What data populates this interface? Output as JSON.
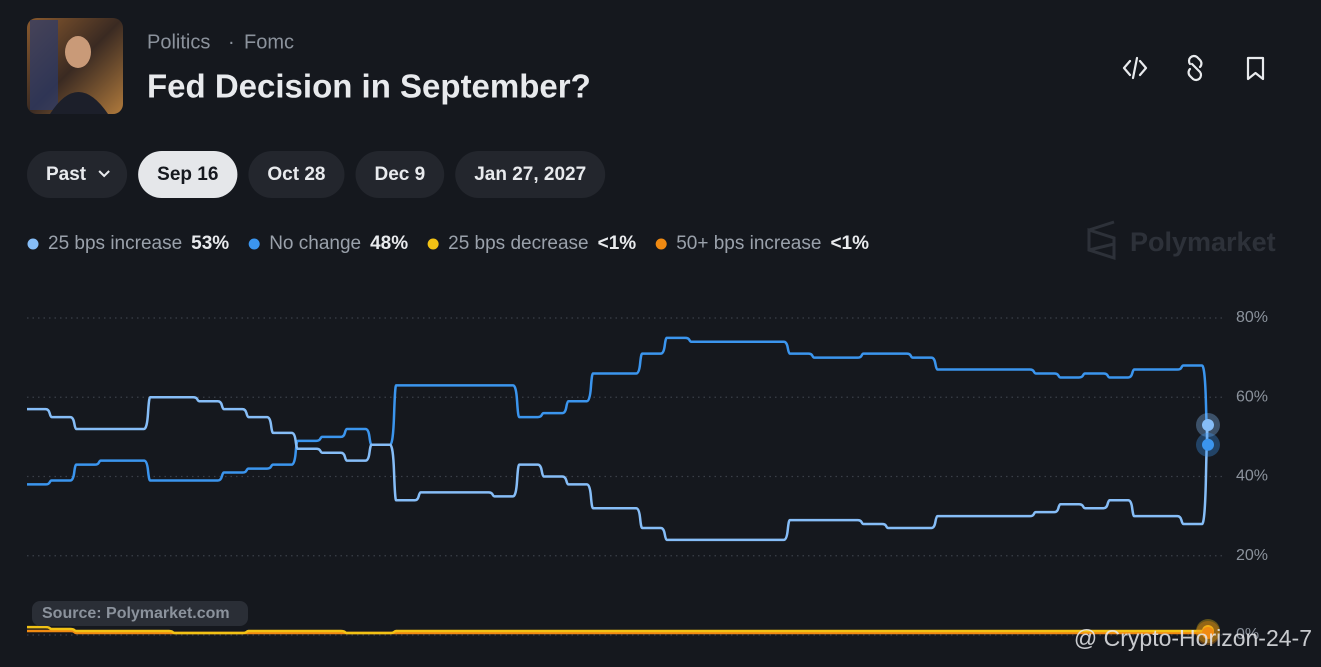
{
  "header": {
    "category": "Politics",
    "separator": "·",
    "subcategory": "Fomc",
    "title": "Fed Decision in September?"
  },
  "tabs": [
    "Past",
    "Sep 16",
    "Oct 28",
    "Dec 9",
    "Jan 27, 2027"
  ],
  "brand": "Polymarket",
  "source": "Source: Polymarket.com",
  "watermark": "@ Crypto-Horizon-24-7",
  "chart_data": {
    "type": "line",
    "ylim": [
      0,
      80
    ],
    "yticks": [
      {
        "value": 0,
        "label": "0%"
      },
      {
        "value": 20,
        "label": "20%"
      },
      {
        "value": 40,
        "label": "40%"
      },
      {
        "value": 60,
        "label": "60%"
      },
      {
        "value": 80,
        "label": "80%"
      }
    ],
    "grid": true,
    "series": [
      {
        "name": "25 bps increase",
        "color": "#86bdf7",
        "current_label": "53%",
        "values": [
          57,
          55,
          52,
          52,
          52,
          60,
          60,
          59,
          57,
          55,
          51,
          47,
          46,
          44,
          48,
          34,
          36,
          36,
          36,
          35,
          43,
          40,
          38,
          32,
          32,
          27,
          24,
          24,
          24,
          24,
          24,
          29,
          29,
          29,
          28,
          27,
          27,
          30,
          30,
          30,
          30,
          31,
          33,
          32,
          34,
          30,
          30,
          28,
          53
        ]
      },
      {
        "name": "No change",
        "color": "#3b95ee",
        "current_label": "48%",
        "values": [
          38,
          39,
          43,
          44,
          44,
          39,
          39,
          39,
          41,
          42,
          43,
          49,
          50,
          52,
          48,
          63,
          63,
          63,
          63,
          63,
          55,
          56,
          59,
          66,
          66,
          71,
          75,
          74,
          74,
          74,
          74,
          71,
          70,
          70,
          71,
          71,
          70,
          67,
          67,
          67,
          67,
          66,
          65,
          66,
          65,
          67,
          67,
          68,
          48
        ]
      },
      {
        "name": "25 bps decrease",
        "color": "#f2c215",
        "current_label": "<1%",
        "values": [
          2,
          1.5,
          1,
          1,
          1,
          1,
          0.5,
          0.5,
          0.5,
          1,
          1,
          1,
          1,
          0.5,
          0.5,
          1,
          1,
          1,
          1,
          1,
          1,
          1,
          1,
          1,
          1,
          1,
          1,
          1,
          1,
          1,
          1,
          1,
          1,
          1,
          1,
          1,
          1,
          1,
          1,
          1,
          1,
          1,
          1,
          1,
          1,
          1,
          1,
          1,
          1
        ]
      },
      {
        "name": "50+ bps increase",
        "color": "#f08a12",
        "current_label": "<1%",
        "values": [
          1,
          1,
          0.5,
          0.5,
          0.5,
          0.5,
          0.5,
          0.5,
          0.5,
          0.5,
          0.5,
          0.5,
          0.5,
          0.5,
          0.5,
          0.5,
          0.5,
          0.5,
          0.5,
          0.5,
          0.5,
          0.5,
          0.5,
          0.5,
          0.5,
          0.5,
          0.5,
          0.5,
          0.5,
          0.5,
          0.5,
          0.5,
          0.5,
          0.5,
          0.5,
          0.5,
          0.5,
          0.5,
          0.5,
          0.5,
          0.5,
          0.5,
          0.5,
          0.5,
          0.5,
          0.5,
          0.5,
          0.5,
          0.5
        ]
      }
    ]
  }
}
